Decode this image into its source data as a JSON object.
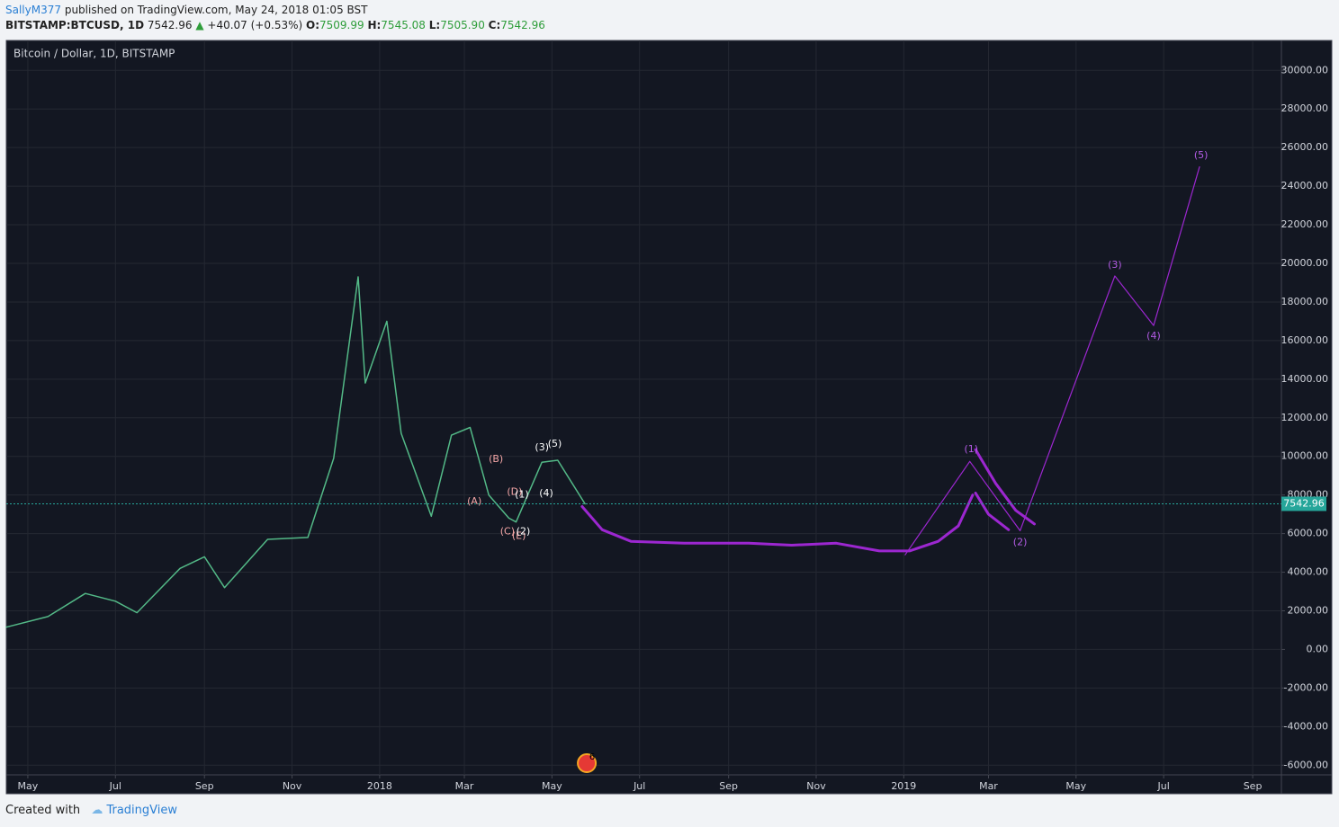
{
  "header": {
    "author": "SallyM377",
    "published": "published on TradingView.com, May 24, 2018 01:05 BST",
    "symbol": "BITSTAMP:BTCUSD, 1D",
    "change": "+40.07 (+0.53%)",
    "ohlc": [
      {
        "label": "O:",
        "value": "7509.99"
      },
      {
        "label": "H:",
        "value": "7545.08"
      },
      {
        "label": "L:",
        "value": "7505.90"
      },
      {
        "label": "C:",
        "value": "7542.96"
      }
    ]
  },
  "footer": {
    "created": "Created with",
    "brand": "TradingView"
  },
  "chart_data": {
    "type": "line",
    "title": "Bitcoin / Dollar, 1D, BITSTAMP",
    "last_price": 7542.96,
    "last_price_color": "#26a69a",
    "events_badge": "6",
    "xlim": [
      "2017-04-16",
      "2019-09-21"
    ],
    "xticks": [
      {
        "value": "2017-05-01",
        "label": "May"
      },
      {
        "value": "2017-07-01",
        "label": "Jul"
      },
      {
        "value": "2017-09-01",
        "label": "Sep"
      },
      {
        "value": "2017-11-01",
        "label": "Nov"
      },
      {
        "value": "2018-01-01",
        "label": "2018"
      },
      {
        "value": "2018-03-01",
        "label": "Mar"
      },
      {
        "value": "2018-05-01",
        "label": "May"
      },
      {
        "value": "2018-07-01",
        "label": "Jul"
      },
      {
        "value": "2018-09-01",
        "label": "Sep"
      },
      {
        "value": "2018-11-01",
        "label": "Nov"
      },
      {
        "value": "2019-01-01",
        "label": "2019"
      },
      {
        "value": "2019-03-01",
        "label": "Mar"
      },
      {
        "value": "2019-05-01",
        "label": "May"
      },
      {
        "value": "2019-07-01",
        "label": "Jul"
      },
      {
        "value": "2019-09-01",
        "label": "Sep"
      }
    ],
    "ylim": [
      -6500,
      31550
    ],
    "yticks": [
      {
        "value": -6000,
        "label": "-6000.00"
      },
      {
        "value": -4000,
        "label": "-4000.00"
      },
      {
        "value": -2000,
        "label": "-2000.00"
      },
      {
        "value": 0,
        "label": "0.00"
      },
      {
        "value": 2000,
        "label": "2000.00"
      },
      {
        "value": 4000,
        "label": "4000.00"
      },
      {
        "value": 6000,
        "label": "6000.00"
      },
      {
        "value": 8000,
        "label": "8000.00"
      },
      {
        "value": 10000,
        "label": "10000.00"
      },
      {
        "value": 12000,
        "label": "12000.00"
      },
      {
        "value": 14000,
        "label": "14000.00"
      },
      {
        "value": 16000,
        "label": "16000.00"
      },
      {
        "value": 18000,
        "label": "18000.00"
      },
      {
        "value": 20000,
        "label": "20000.00"
      },
      {
        "value": 22000,
        "label": "22000.00"
      },
      {
        "value": 24000,
        "label": "24000.00"
      },
      {
        "value": 26000,
        "label": "26000.00"
      },
      {
        "value": 28000,
        "label": "28000.00"
      },
      {
        "value": 30000,
        "label": "30000.00"
      }
    ],
    "grid": true,
    "series": [
      {
        "color": "#53b987",
        "width": 1.5,
        "x": [
          "2017-04-16",
          "2017-05-15",
          "2017-06-10",
          "2017-07-01",
          "2017-07-16",
          "2017-08-15",
          "2017-09-01",
          "2017-09-15",
          "2017-10-15",
          "2017-11-12",
          "2017-11-30",
          "2017-12-17",
          "2017-12-22",
          "2018-01-06",
          "2018-01-16",
          "2018-02-06",
          "2018-02-20",
          "2018-03-05",
          "2018-03-18",
          "2018-04-01",
          "2018-04-06",
          "2018-04-24",
          "2018-05-05",
          "2018-05-24"
        ],
        "values": [
          1150,
          1700,
          2900,
          2500,
          1900,
          4200,
          4800,
          3200,
          5700,
          5800,
          9900,
          19300,
          13800,
          17000,
          11200,
          6900,
          11100,
          11500,
          8000,
          6800,
          6600,
          9700,
          9800,
          7543
        ]
      },
      {
        "color": "#9c27d0",
        "width": 3,
        "x": [
          "2018-05-22",
          "2018-06-05",
          "2018-06-25",
          "2018-08-01",
          "2018-09-15",
          "2018-10-15",
          "2018-11-15",
          "2018-12-15",
          "2019-01-05",
          "2019-01-25",
          "2019-02-08",
          "2019-02-18"
        ],
        "values": [
          7400,
          6200,
          5600,
          5500,
          5500,
          5400,
          5500,
          5100,
          5100,
          5600,
          6400,
          8000
        ]
      },
      {
        "color": "#9c27d0",
        "width": 3,
        "x": [
          "2019-02-20",
          "2019-03-06",
          "2019-03-20",
          "2019-04-02"
        ],
        "values": [
          10350,
          8600,
          7200,
          6500
        ]
      },
      {
        "color": "#9c27d0",
        "width": 3,
        "x": [
          "2019-02-20",
          "2019-03-01",
          "2019-03-15"
        ],
        "values": [
          8100,
          7000,
          6200
        ]
      },
      {
        "color": "#9c27d0",
        "width": 1.2,
        "x": [
          "2019-01-02",
          "2019-02-16",
          "2019-03-23",
          "2019-05-28",
          "2019-06-24",
          "2019-07-26"
        ],
        "values": [
          4900,
          9740,
          6150,
          19350,
          16780,
          25000
        ]
      }
    ],
    "wave_labels": [
      {
        "text": "(A)",
        "x": "2018-03-08",
        "y": 7650,
        "color": "#f4a6a6"
      },
      {
        "text": "(B)",
        "x": "2018-03-23",
        "y": 9840,
        "color": "#f4a6a6"
      },
      {
        "text": "(C)",
        "x": "2018-03-31",
        "y": 6100,
        "color": "#f4a6a6"
      },
      {
        "text": "(D)",
        "x": "2018-04-05",
        "y": 8150,
        "color": "#f4a6a6"
      },
      {
        "text": "(E)",
        "x": "2018-04-08",
        "y": 5870,
        "color": "#f4a6a6"
      },
      {
        "text": "(1)",
        "x": "2018-04-10",
        "y": 8000,
        "color": "#ffffff"
      },
      {
        "text": "(2)",
        "x": "2018-04-11",
        "y": 6100,
        "color": "#ffffff"
      },
      {
        "text": "(3)",
        "x": "2018-04-24",
        "y": 10450,
        "color": "#ffffff"
      },
      {
        "text": "(4)",
        "x": "2018-04-27",
        "y": 8070,
        "color": "#ffffff"
      },
      {
        "text": "(5)",
        "x": "2018-05-03",
        "y": 10640,
        "color": "#ffffff"
      },
      {
        "text": "(1)",
        "x": "2019-02-17",
        "y": 10350,
        "color": "#b45ce6"
      },
      {
        "text": "(2)",
        "x": "2019-03-23",
        "y": 5550,
        "color": "#b45ce6"
      },
      {
        "text": "(3)",
        "x": "2019-05-28",
        "y": 19900,
        "color": "#b45ce6"
      },
      {
        "text": "(4)",
        "x": "2019-06-24",
        "y": 16220,
        "color": "#b45ce6"
      },
      {
        "text": "(5)",
        "x": "2019-07-27",
        "y": 25600,
        "color": "#b45ce6"
      }
    ]
  }
}
